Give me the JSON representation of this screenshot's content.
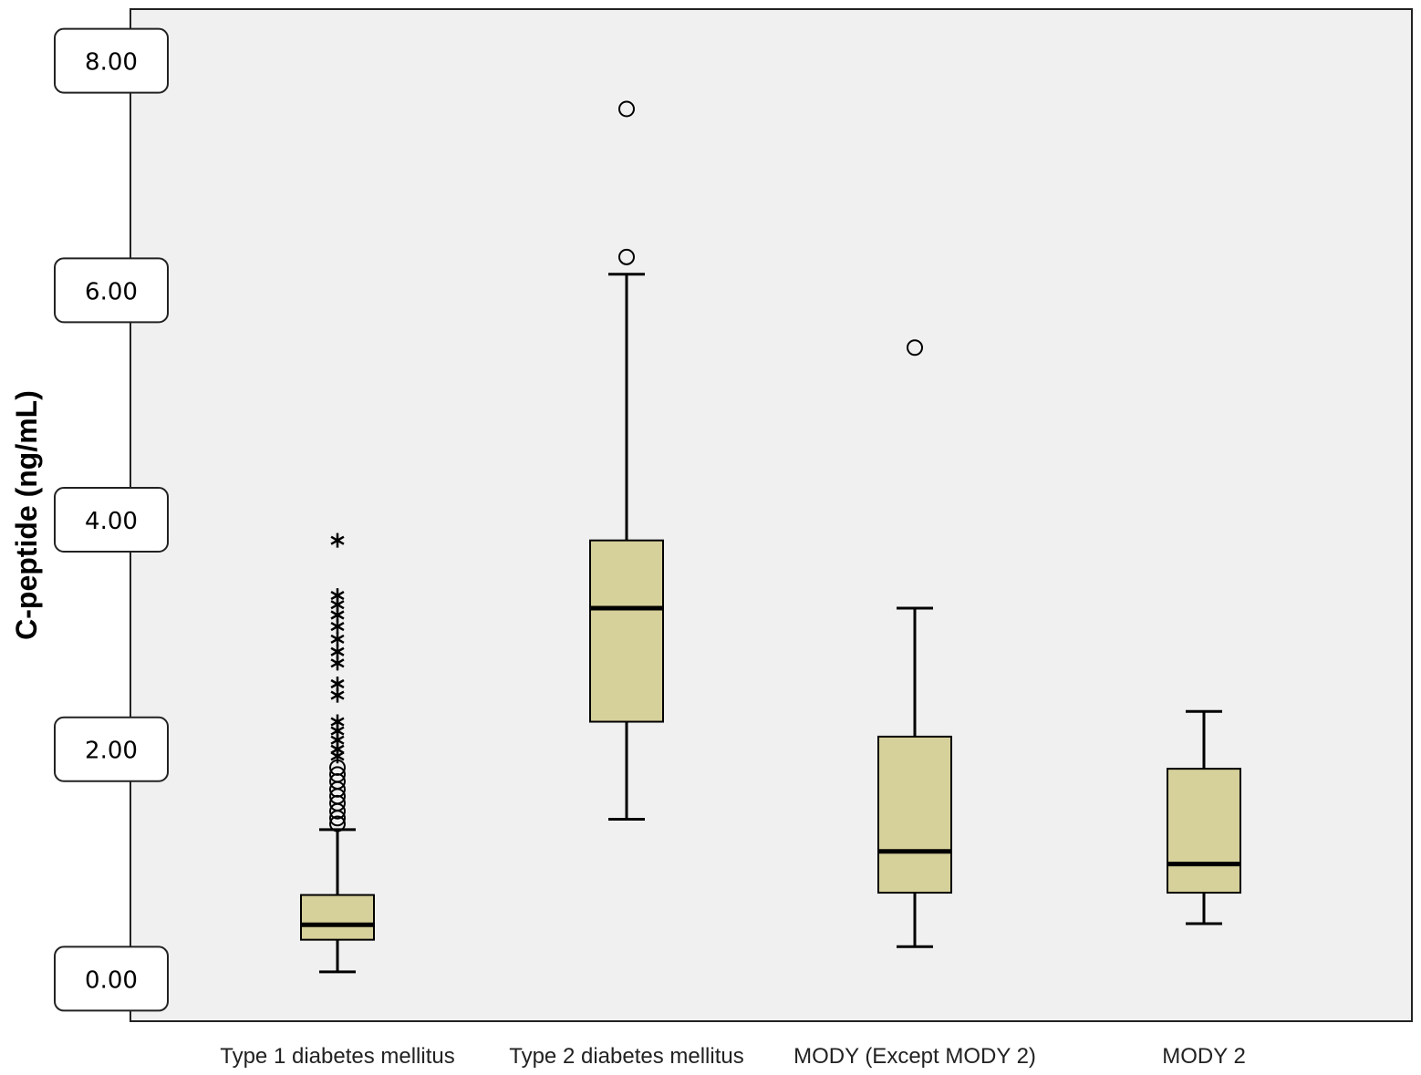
{
  "chart_data": {
    "type": "boxplot",
    "title": "",
    "xlabel": "",
    "ylabel": "C-peptide (ng/mL)",
    "ylim": [
      -0.37,
      8.45
    ],
    "yticks": [
      0,
      2,
      4,
      6,
      8
    ],
    "ytick_labels": [
      "0.00",
      "2.00",
      "4.00",
      "6.00",
      "8.00"
    ],
    "grid": false,
    "colors": {
      "box_fill": "#d6d09a",
      "plot_bg": "#f0f0f0",
      "stroke": "#000000"
    },
    "categories": [
      "Type 1 diabetes mellitus",
      "Type 2 diabetes mellitus",
      "MODY (Except MODY 2)",
      "MODY 2"
    ],
    "series": [
      {
        "name": "Type 1 diabetes mellitus",
        "min": 0.06,
        "q1": 0.34,
        "median": 0.47,
        "q3": 0.73,
        "max": 1.3,
        "outliers": [
          1.35,
          1.4,
          1.46,
          1.53,
          1.59,
          1.65,
          1.72,
          1.78,
          1.84
        ],
        "extremes": [
          1.94,
          2.0,
          2.08,
          2.16,
          2.24,
          2.47,
          2.57,
          2.75,
          2.85,
          2.96,
          3.07,
          3.17,
          3.26,
          3.34,
          3.82
        ]
      },
      {
        "name": "Type 2 diabetes mellitus",
        "min": 1.39,
        "q1": 2.24,
        "median": 3.23,
        "q3": 3.82,
        "max": 6.14,
        "outliers": [
          6.29,
          7.58
        ],
        "extremes": []
      },
      {
        "name": "MODY (Except MODY 2)",
        "min": 0.28,
        "q1": 0.75,
        "median": 1.11,
        "q3": 2.11,
        "max": 3.23,
        "outliers": [
          5.5
        ],
        "extremes": []
      },
      {
        "name": "MODY 2",
        "min": 0.48,
        "q1": 0.75,
        "median": 1.0,
        "q3": 1.83,
        "max": 2.33,
        "outliers": [],
        "extremes": []
      }
    ]
  }
}
